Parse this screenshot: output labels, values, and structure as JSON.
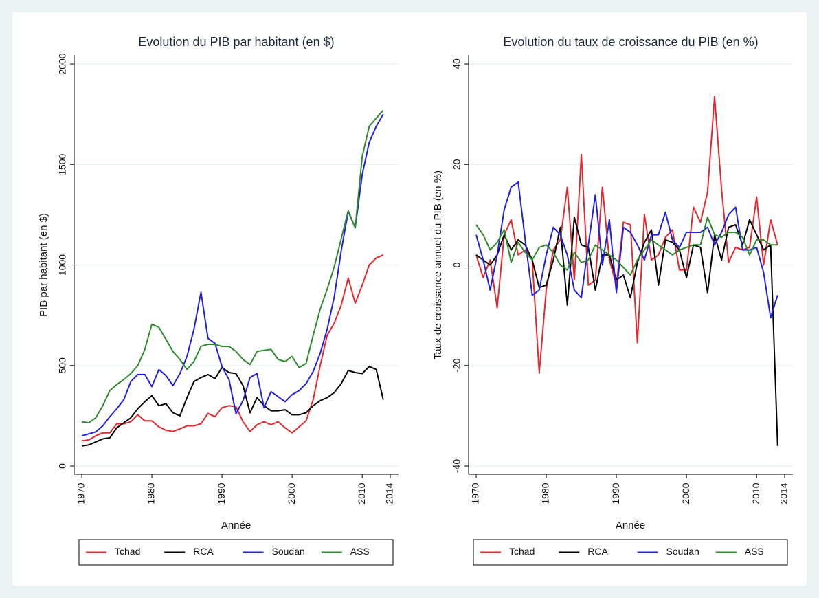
{
  "chart_data": [
    {
      "type": "line",
      "title": "Evolution du PIB par habitant (en $)",
      "x_label": "Année",
      "y_label": "PIB par habitant (en $)",
      "x": [
        1970,
        1971,
        1972,
        1973,
        1974,
        1975,
        1976,
        1977,
        1978,
        1979,
        1980,
        1981,
        1982,
        1983,
        1984,
        1985,
        1986,
        1987,
        1988,
        1989,
        1990,
        1991,
        1992,
        1993,
        1994,
        1995,
        1996,
        1997,
        1998,
        1999,
        2000,
        2001,
        2002,
        2003,
        2004,
        2005,
        2006,
        2007,
        2008,
        2009,
        2010,
        2011,
        2012,
        2013
      ],
      "xlim": [
        1970,
        2014
      ],
      "xticks": [
        1970,
        1980,
        1990,
        2000,
        2010,
        2014
      ],
      "ylim": [
        0,
        2000
      ],
      "yticks": [
        0,
        500,
        1000,
        1500,
        2000
      ],
      "grid": true,
      "legend": "bottom",
      "series": [
        {
          "name": "Tchad",
          "color": "#e8262b",
          "values": [
            125,
            130,
            150,
            165,
            165,
            210,
            210,
            220,
            255,
            225,
            225,
            195,
            178,
            172,
            185,
            200,
            200,
            210,
            262,
            245,
            290,
            300,
            295,
            220,
            172,
            205,
            220,
            205,
            220,
            190,
            165,
            195,
            225,
            330,
            500,
            650,
            710,
            800,
            935,
            810,
            900,
            1000,
            1035,
            1050
          ]
        },
        {
          "name": "RCA",
          "color": "#000000",
          "values": [
            100,
            105,
            120,
            135,
            140,
            190,
            215,
            240,
            285,
            320,
            350,
            300,
            310,
            265,
            250,
            340,
            420,
            440,
            455,
            435,
            490,
            465,
            460,
            400,
            265,
            340,
            300,
            275,
            275,
            280,
            255,
            255,
            265,
            300,
            325,
            340,
            365,
            410,
            475,
            465,
            460,
            495,
            480,
            330
          ]
        },
        {
          "name": "Soudan",
          "color": "#1f1fe6",
          "values": [
            150,
            160,
            170,
            200,
            245,
            285,
            330,
            420,
            455,
            455,
            395,
            480,
            450,
            400,
            460,
            545,
            680,
            865,
            635,
            610,
            495,
            430,
            260,
            325,
            440,
            460,
            290,
            370,
            345,
            320,
            355,
            375,
            410,
            470,
            560,
            680,
            840,
            1070,
            1265,
            1185,
            1450,
            1610,
            1690,
            1750
          ]
        },
        {
          "name": "ASS",
          "color": "#2e8b2e",
          "values": [
            220,
            215,
            240,
            300,
            375,
            405,
            430,
            460,
            500,
            580,
            705,
            690,
            630,
            570,
            530,
            480,
            520,
            595,
            605,
            605,
            595,
            595,
            570,
            530,
            505,
            570,
            575,
            580,
            530,
            520,
            545,
            490,
            510,
            650,
            780,
            880,
            990,
            1130,
            1270,
            1185,
            1540,
            1690,
            1730,
            1770
          ]
        }
      ]
    },
    {
      "type": "line",
      "title": "Evolution du taux de croissance du PIB (en %)",
      "x_label": "Année",
      "y_label": "Taux de croissance annuel du PIB (en %)",
      "x": [
        1970,
        1971,
        1972,
        1973,
        1974,
        1975,
        1976,
        1977,
        1978,
        1979,
        1980,
        1981,
        1982,
        1983,
        1984,
        1985,
        1986,
        1987,
        1988,
        1989,
        1990,
        1991,
        1992,
        1993,
        1994,
        1995,
        1996,
        1997,
        1998,
        1999,
        2000,
        2001,
        2002,
        2003,
        2004,
        2005,
        2006,
        2007,
        2008,
        2009,
        2010,
        2011,
        2012,
        2013
      ],
      "xlim": [
        1970,
        2014
      ],
      "xticks": [
        1970,
        1980,
        1990,
        2000,
        2010,
        2014
      ],
      "ylim": [
        -40,
        40
      ],
      "yticks": [
        -40,
        -20,
        0,
        20,
        40
      ],
      "grid": true,
      "legend": "bottom",
      "series": [
        {
          "name": "Tchad",
          "color": "#e8262b",
          "values": [
            2,
            -2.5,
            1,
            -8.5,
            6,
            9,
            2,
            3,
            1,
            -21.5,
            -5,
            3,
            5,
            15.5,
            -3,
            22,
            -4,
            -3,
            15.5,
            1,
            -4,
            8.5,
            8,
            -15.5,
            10,
            1,
            2,
            5.5,
            7,
            -1,
            -1,
            11.5,
            8.5,
            14.5,
            33.5,
            15,
            0.5,
            3.5,
            3,
            3.5,
            13.5,
            0,
            9,
            4
          ]
        },
        {
          "name": "RCA",
          "color": "#000000",
          "values": [
            2,
            1,
            0,
            2,
            6,
            3,
            5,
            4,
            1,
            -4.5,
            -4,
            1,
            7.5,
            -8,
            9.5,
            4,
            3.5,
            -5,
            2,
            2,
            -3,
            -2,
            -6.5,
            0.5,
            4.5,
            7,
            -4,
            5,
            4.5,
            3,
            -2.5,
            4,
            3.5,
            -5.5,
            6,
            1,
            7.5,
            8,
            4,
            9,
            6,
            3,
            4,
            -36
          ]
        },
        {
          "name": "Soudan",
          "color": "#1f1fe6",
          "values": [
            6,
            1,
            -5,
            2,
            11,
            15.5,
            16.5,
            5,
            -6,
            -5,
            2,
            7.5,
            6,
            2,
            -5,
            -6.5,
            4,
            14,
            0,
            9,
            -5.5,
            7.5,
            6.5,
            4,
            1,
            6,
            6,
            10.5,
            5,
            3.5,
            6.5,
            6.5,
            6.5,
            7.5,
            4,
            6.5,
            10,
            11.5,
            3,
            3,
            3.5,
            -1.5,
            -10.5,
            -6
          ]
        },
        {
          "name": "ASS",
          "color": "#2e8b2e",
          "values": [
            8,
            6,
            3,
            4.5,
            7,
            0.5,
            4.5,
            2.5,
            1,
            3.5,
            4,
            2.5,
            0,
            -1,
            2.5,
            0.5,
            1,
            4,
            3,
            2,
            1,
            -0.5,
            -2,
            1,
            3,
            5,
            4,
            3,
            2,
            3,
            3.5,
            4,
            4,
            9.5,
            6,
            5.5,
            6.5,
            6.5,
            5.5,
            2,
            5,
            5,
            4,
            4
          ]
        }
      ]
    }
  ]
}
